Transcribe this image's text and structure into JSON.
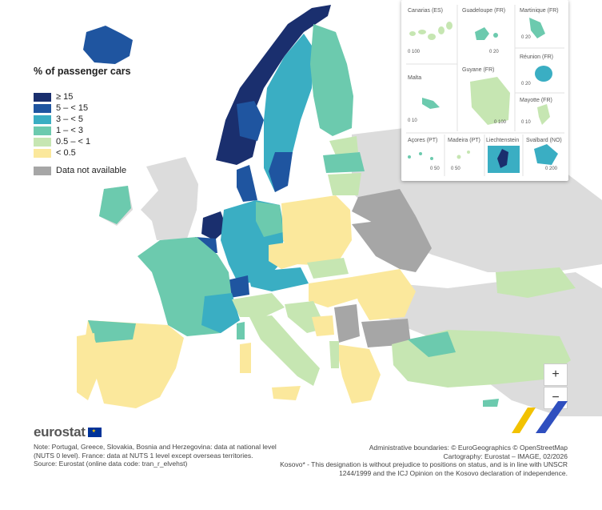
{
  "legend": {
    "title": "% of passenger cars",
    "items": [
      {
        "label": "≥ 15",
        "color": "#1a2f6e"
      },
      {
        "label": "5 – < 15",
        "color": "#1f55a0"
      },
      {
        "label": "3 – < 5",
        "color": "#3aaec3"
      },
      {
        "label": "1 – < 3",
        "color": "#6ccaae"
      },
      {
        "label": "0.5 – < 1",
        "color": "#c6e6b2"
      },
      {
        "label": "< 0.5",
        "color": "#fbe89c"
      },
      {
        "label": "Data not available",
        "color": "#a6a6a6"
      }
    ]
  },
  "insets": {
    "canarias": {
      "label": "Canarias (ES)",
      "scale": "0  100"
    },
    "guadeloupe": {
      "label": "Guadeloupe (FR)",
      "scale": "0  20"
    },
    "martinique": {
      "label": "Martinique (FR)",
      "scale": "0  20"
    },
    "malta": {
      "label": "Malta",
      "scale": "0  10"
    },
    "guyane": {
      "label": "Guyane (FR)",
      "scale": "0  100"
    },
    "reunion": {
      "label": "Réunion (FR)",
      "scale": "0  20"
    },
    "mayotte": {
      "label": "Mayotte (FR)",
      "scale": "0  10"
    },
    "acores": {
      "label": "Açores (PT)",
      "scale": "0  50"
    },
    "madeira": {
      "label": "Madeira (PT)",
      "scale": "0  50"
    },
    "liechtenstein": {
      "label": "Liechtenstein",
      "scale": ""
    },
    "svalbard": {
      "label": "Svalbard (NO)",
      "scale": "0  200"
    }
  },
  "zoom": {
    "in": "+",
    "out": "−"
  },
  "logo": {
    "text": "eurostat"
  },
  "notes": {
    "left": [
      "Note: Portugal, Greece, Slovakia, Bosnia and Herzegovina: data at national level (NUTS 0 level). France: data at NUTS 1 level except overseas territories.",
      "Source: Eurostat (online data code: tran_r_elvehst)"
    ],
    "right": [
      "Administrative boundaries: © EuroGeographics © OpenStreetMap",
      "Cartography: Eurostat – IMAGE, 02/2026",
      "Kosovo* - This designation is without prejudice to positions on status, and is in line with UNSCR 1244/1999 and the ICJ Opinion on the Kosovo declaration of independence."
    ]
  }
}
